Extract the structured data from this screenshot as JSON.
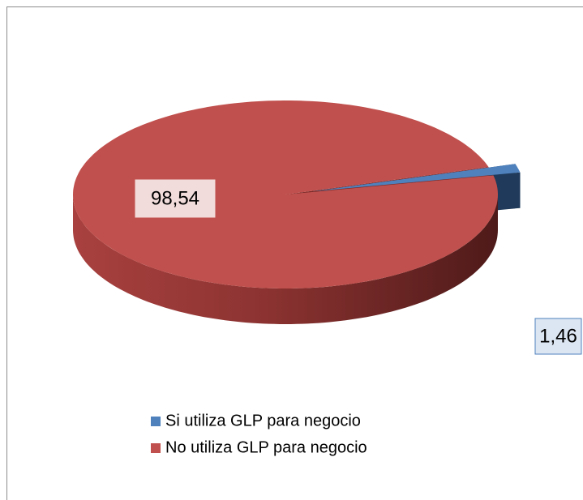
{
  "chart_data": {
    "type": "pie3d",
    "categories": [
      "Si utiliza GLP para negocio",
      "No utiliza GLP para negocio"
    ],
    "values": [
      1.46,
      98.54
    ],
    "value_labels": [
      "1,46",
      "98,54"
    ],
    "colors": [
      "#4f81bd",
      "#c0504d"
    ],
    "legend": "bottom"
  }
}
